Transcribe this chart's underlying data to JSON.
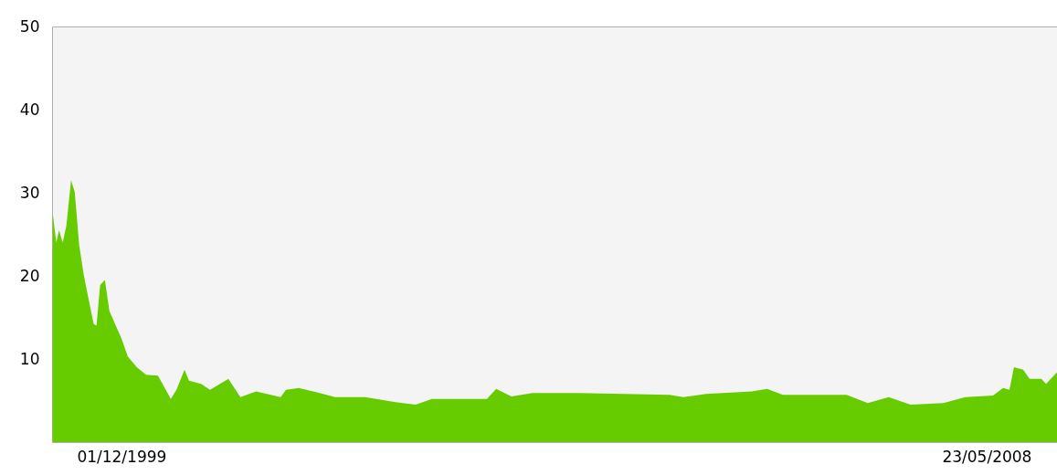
{
  "chart_data": {
    "type": "area",
    "x": [
      "1999-03-30",
      "1999-04-12",
      "1999-04-22",
      "1999-05-05",
      "1999-05-18",
      "1999-06-04",
      "1999-06-17",
      "1999-07-03",
      "1999-07-19",
      "1999-08-05",
      "1999-08-24",
      "1999-09-03",
      "1999-09-16",
      "1999-10-03",
      "1999-10-19",
      "1999-11-11",
      "1999-12-01",
      "1999-12-24",
      "2000-01-25",
      "2000-02-27",
      "2000-04-10",
      "2000-05-26",
      "2000-06-15",
      "2000-07-14",
      "2000-07-30",
      "2000-09-11",
      "2000-10-13",
      "2000-12-18",
      "2001-01-30",
      "2001-03-27",
      "2001-06-23",
      "2001-07-12",
      "2001-08-27",
      "2001-10-31",
      "2002-01-04",
      "2002-04-22",
      "2002-08-08",
      "2002-10-19",
      "2002-12-16",
      "2003-07-01",
      "2003-08-03",
      "2003-09-27",
      "2003-12-11",
      "2004-05-23",
      "2005-04-15",
      "2005-06-03",
      "2005-08-23",
      "2006-02-03",
      "2006-03-30",
      "2006-05-25",
      "2007-01-08",
      "2007-03-25",
      "2007-06-08",
      "2007-08-25",
      "2007-12-21",
      "2008-03-08",
      "2008-06-15",
      "2008-07-21",
      "2008-08-13",
      "2008-08-29",
      "2008-10-01",
      "2008-10-24",
      "2008-12-05",
      "2008-12-22",
      "2009-01-30"
    ],
    "series": [
      {
        "color": "#66cc00",
        "values": [
          27.6,
          24,
          25.5,
          24,
          26,
          31.5,
          30.1,
          23.7,
          20.2,
          17.3,
          14.2,
          14,
          18.9,
          19.5,
          15.8,
          14,
          12.5,
          10.3,
          9,
          8.1,
          8,
          5.2,
          6.3,
          8.7,
          7.4,
          7,
          6.3,
          7.6,
          5.4,
          6.1,
          5.4,
          6.3,
          6.5,
          6,
          5.4,
          5.4,
          4.8,
          4.5,
          5.2,
          5.2,
          6.4,
          5.5,
          5.9,
          5.9,
          5.7,
          5.4,
          5.8,
          6.1,
          6.4,
          5.7,
          5.7,
          4.7,
          5.4,
          4.5,
          4.7,
          5.4,
          5.6,
          6.5,
          6.3,
          9,
          8.7,
          7.6,
          7.6,
          7,
          8.4
        ]
      }
    ],
    "xlim": [
      "1999-03-28",
      "2009-01-30"
    ],
    "xticks": [
      {
        "value": "1999-12-01",
        "label": "01/12/1999"
      },
      {
        "value": "2008-05-23",
        "label": "23/05/2008"
      }
    ],
    "ylim": [
      0,
      50
    ],
    "yticks": [
      10,
      20,
      30,
      40,
      50
    ],
    "grid": false,
    "legend": false
  }
}
